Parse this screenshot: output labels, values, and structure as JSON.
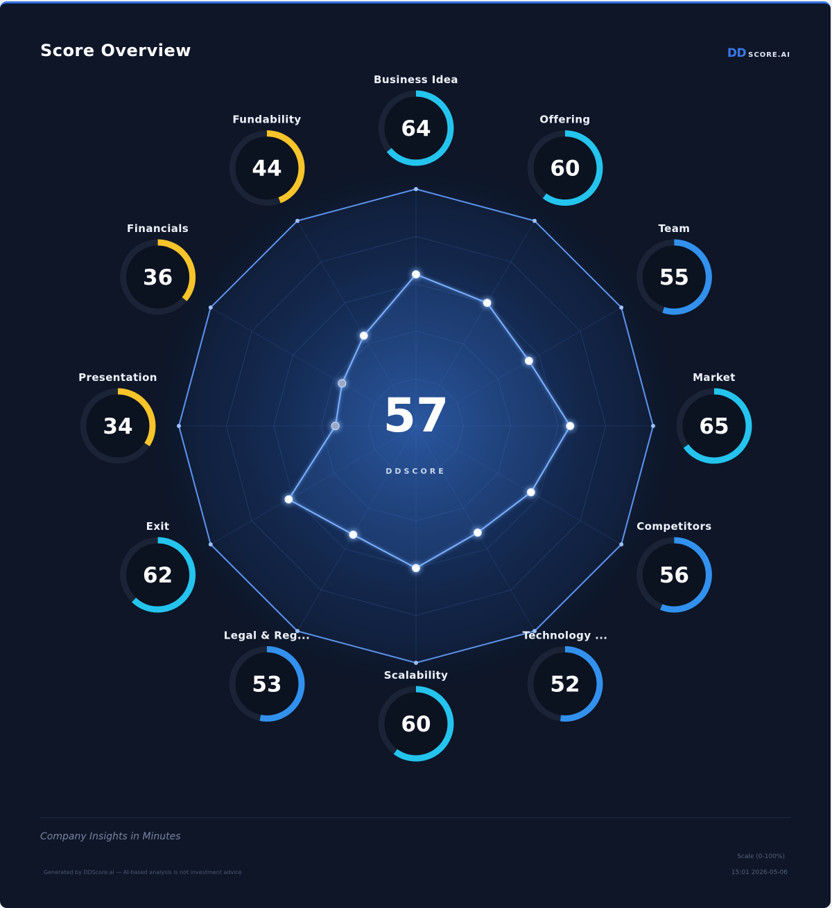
{
  "header": {
    "title": "Score Overview",
    "logo_mark": "DD",
    "logo_text": "SCORE.AI"
  },
  "overall": {
    "score": "57",
    "label": "DDSCORE"
  },
  "colors": {
    "background": "#0e1628",
    "low_score": "#f7c42a",
    "mid_score": "#3291ee",
    "high_score": "#24c4ee",
    "radar_line": "#5d95f0",
    "ring_track": "#1a2436"
  },
  "chart_data": {
    "type": "radar",
    "title": "",
    "scale": [
      0,
      100
    ],
    "grid_levels": 5,
    "center_value": 57,
    "categories": [
      "Business Idea",
      "Offering",
      "Team",
      "Market",
      "Competitors",
      "Technology ...",
      "Scalability",
      "Legal & Reg...",
      "Exit",
      "Presentation",
      "Financials",
      "Fundability"
    ],
    "values": [
      64,
      60,
      55,
      65,
      56,
      52,
      60,
      53,
      62,
      34,
      36,
      44
    ]
  },
  "footer": {
    "tagline": "Company Insights in Minutes",
    "scale_note": "Scale (0-100%)",
    "generated_note": "Generated by DDScore.ai — AI-based analysis is not investment advice",
    "date_note": "15:01 2026-05-06"
  }
}
